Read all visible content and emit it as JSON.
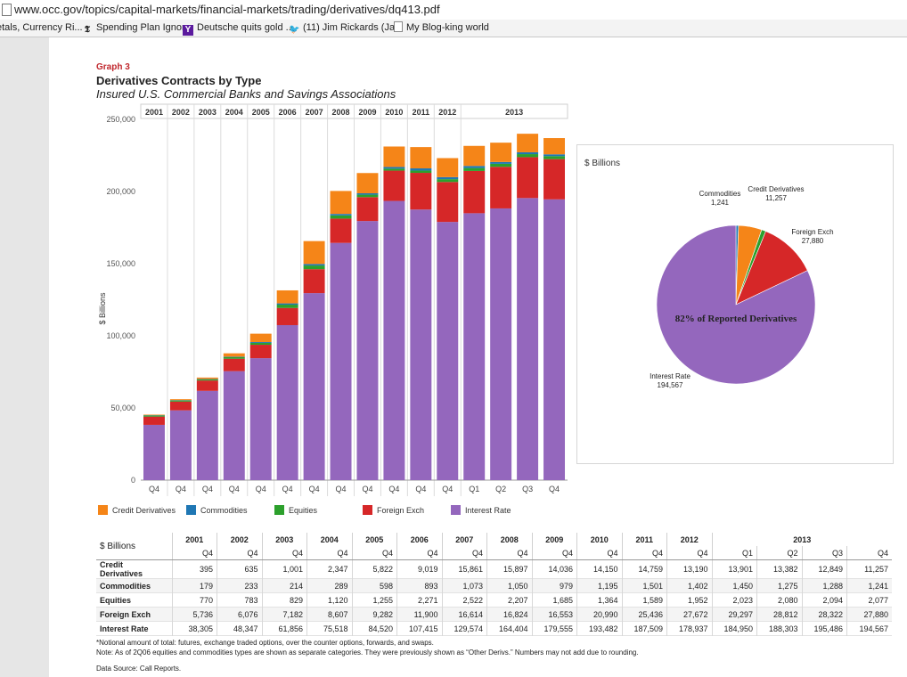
{
  "browser": {
    "url": "www.occ.gov/topics/capital-markets/financial-markets/trading/derivatives/dq413.pdf",
    "bookmarks": [
      {
        "label": "etals, Currency Ri...",
        "icon": "none"
      },
      {
        "label": "Spending Plan Ignor...",
        "icon": "nyt-icon"
      },
      {
        "label": "Deutsche quits gold ...",
        "icon": "yahoo-icon"
      },
      {
        "label": "(11) Jim Rickards (Ja...",
        "icon": "twitter-icon"
      },
      {
        "label": "My Blog-king world",
        "icon": "page-icon"
      }
    ]
  },
  "report": {
    "graph_label": "Graph 3",
    "title": "Derivatives Contracts by Type",
    "subtitle": "Insured U.S. Commercial Banks and Savings Associations"
  },
  "colors": {
    "credit": "#f58518",
    "commodities": "#1f77b4",
    "equities": "#2ca02c",
    "fx": "#d62728",
    "interest": "#9467bd"
  },
  "chart_data": [
    {
      "type": "bar",
      "stacked": true,
      "ylabel": "$ Billions",
      "ylim": [
        0,
        250000
      ],
      "yticks": [
        "0",
        "50,000",
        "100,000",
        "150,000",
        "200,000",
        "250,000"
      ],
      "year_headers": [
        "2001",
        "2002",
        "2003",
        "2004",
        "2005",
        "2006",
        "2007",
        "2008",
        "2009",
        "2010",
        "2011",
        "2012",
        "2013"
      ],
      "categories": [
        "Q4",
        "Q4",
        "Q4",
        "Q4",
        "Q4",
        "Q4",
        "Q4",
        "Q4",
        "Q4",
        "Q4",
        "Q4",
        "Q4",
        "Q1",
        "Q2",
        "Q3",
        "Q4"
      ],
      "series": [
        {
          "name": "Interest Rate",
          "values": [
            38305,
            48347,
            61856,
            75518,
            84520,
            107415,
            129574,
            164404,
            179555,
            193482,
            187509,
            178937,
            184950,
            188303,
            195486,
            194567
          ]
        },
        {
          "name": "Foreign Exch",
          "values": [
            5736,
            6076,
            7182,
            8607,
            9282,
            11900,
            16614,
            16824,
            16553,
            20990,
            25436,
            27672,
            29297,
            28812,
            28322,
            27880
          ]
        },
        {
          "name": "Equities",
          "values": [
            770,
            783,
            829,
            1120,
            1255,
            2271,
            2522,
            2207,
            1685,
            1364,
            1589,
            1952,
            2023,
            2080,
            2094,
            2077
          ]
        },
        {
          "name": "Commodities",
          "values": [
            179,
            233,
            214,
            289,
            598,
            893,
            1073,
            1050,
            979,
            1195,
            1501,
            1402,
            1450,
            1275,
            1288,
            1241
          ]
        },
        {
          "name": "Credit Derivatives",
          "values": [
            395,
            635,
            1001,
            2347,
            5822,
            9019,
            15861,
            15897,
            14036,
            14150,
            14759,
            13190,
            13901,
            13382,
            12849,
            11257
          ]
        }
      ],
      "legend": [
        "Credit Derivatives",
        "Commodities",
        "Equities",
        "Foreign Exch",
        "Interest Rate"
      ],
      "legend_position": "bottom"
    },
    {
      "type": "pie",
      "units": "$ Billions",
      "annotation": "82% of Reported Derivatives",
      "slices": [
        {
          "name": "Interest Rate",
          "value": 194567,
          "label_value": "194,567"
        },
        {
          "name": "Commodities",
          "value": 1241,
          "label_value": "1,241"
        },
        {
          "name": "Credit Derivatives",
          "value": 11257,
          "label_value": "11,257"
        },
        {
          "name": "Foreign Exch",
          "value": 27880,
          "label_value": "27,880"
        },
        {
          "name": "Equities",
          "value": 2077,
          "label_value": ""
        }
      ]
    }
  ],
  "table": {
    "units_label": "$ Billions",
    "years": [
      "2001",
      "2002",
      "2003",
      "2004",
      "2005",
      "2006",
      "2007",
      "2008",
      "2009",
      "2010",
      "2011",
      "2012",
      "2013"
    ],
    "quarters": [
      "Q4",
      "Q4",
      "Q4",
      "Q4",
      "Q4",
      "Q4",
      "Q4",
      "Q4",
      "Q4",
      "Q4",
      "Q4",
      "Q4",
      "Q1",
      "Q2",
      "Q3",
      "Q4"
    ],
    "rows": [
      {
        "label": "Credit Derivatives",
        "values": [
          "395",
          "635",
          "1,001",
          "2,347",
          "5,822",
          "9,019",
          "15,861",
          "15,897",
          "14,036",
          "14,150",
          "14,759",
          "13,190",
          "13,901",
          "13,382",
          "12,849",
          "11,257"
        ]
      },
      {
        "label": "Commodities",
        "values": [
          "179",
          "233",
          "214",
          "289",
          "598",
          "893",
          "1,073",
          "1,050",
          "979",
          "1,195",
          "1,501",
          "1,402",
          "1,450",
          "1,275",
          "1,288",
          "1,241"
        ]
      },
      {
        "label": "Equities",
        "values": [
          "770",
          "783",
          "829",
          "1,120",
          "1,255",
          "2,271",
          "2,522",
          "2,207",
          "1,685",
          "1,364",
          "1,589",
          "1,952",
          "2,023",
          "2,080",
          "2,094",
          "2,077"
        ]
      },
      {
        "label": "Foreign Exch",
        "values": [
          "5,736",
          "6,076",
          "7,182",
          "8,607",
          "9,282",
          "11,900",
          "16,614",
          "16,824",
          "16,553",
          "20,990",
          "25,436",
          "27,672",
          "29,297",
          "28,812",
          "28,322",
          "27,880"
        ]
      },
      {
        "label": "Interest Rate",
        "values": [
          "38,305",
          "48,347",
          "61,856",
          "75,518",
          "84,520",
          "107,415",
          "129,574",
          "164,404",
          "179,555",
          "193,482",
          "187,509",
          "178,937",
          "184,950",
          "188,303",
          "195,486",
          "194,567"
        ]
      }
    ]
  },
  "notes": {
    "line1": "*Notional amount of total: futures, exchange traded options, over the counter options, forwards, and swaps.",
    "line2": "Note: As of 2Q06 equities and commodities types are shown as separate categories.  They were previously shown as “Other Derivs.”  Numbers may not add due to rounding.",
    "source": "Data Source: Call Reports."
  }
}
